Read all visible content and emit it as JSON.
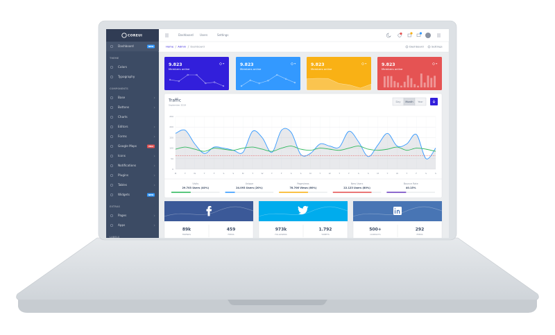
{
  "sidebar": {
    "brand": "COREUI",
    "groups": [
      {
        "items": [
          {
            "label": "Dashboard",
            "badge": {
              "text": "NEW",
              "color": "#39f"
            }
          }
        ]
      },
      {
        "title": "THEME",
        "items": [
          {
            "label": "Colors"
          },
          {
            "label": "Typography"
          }
        ]
      },
      {
        "title": "COMPONENTS",
        "items": [
          {
            "label": "Base",
            "submenu": true
          },
          {
            "label": "Buttons",
            "submenu": true
          },
          {
            "label": "Charts"
          },
          {
            "label": "Editors",
            "submenu": true
          },
          {
            "label": "Forms",
            "submenu": true
          },
          {
            "label": "Google Maps",
            "badge": {
              "text": "PRO",
              "color": "#e55353"
            }
          },
          {
            "label": "Icons",
            "submenu": true
          },
          {
            "label": "Notifications",
            "submenu": true
          },
          {
            "label": "Plugins",
            "submenu": true
          },
          {
            "label": "Tables",
            "submenu": true
          },
          {
            "label": "Widgets",
            "badge": {
              "text": "NEW",
              "color": "#39f"
            }
          }
        ]
      },
      {
        "title": "EXTRAS",
        "items": [
          {
            "label": "Pages",
            "submenu": true
          },
          {
            "label": "Apps",
            "submenu": true
          }
        ]
      },
      {
        "title": "LABELS",
        "items": []
      }
    ]
  },
  "header": {
    "nav": [
      "Dashboard",
      "Users",
      "Settings"
    ]
  },
  "breadcrumb": {
    "items": [
      "Home",
      "Admin",
      "Dashboard"
    ],
    "actions": [
      "Dashboard",
      "Settings"
    ]
  },
  "cards": [
    {
      "value": "9.823",
      "label": "Members online",
      "color": "#321fdb",
      "chart": "line",
      "values": [
        65,
        59,
        84,
        84,
        51,
        55,
        40
      ]
    },
    {
      "value": "9.823",
      "label": "Members online",
      "color": "#39f",
      "chart": "line",
      "values": [
        1,
        18,
        9,
        17,
        34,
        22,
        11
      ]
    },
    {
      "value": "9.823",
      "label": "Members online",
      "color": "#f9b115",
      "chart": "area",
      "values": [
        78,
        81,
        80,
        45,
        34,
        12,
        40
      ]
    },
    {
      "value": "9.823",
      "label": "Members online",
      "color": "#e55353",
      "chart": "bar",
      "values": [
        78,
        81,
        80,
        45,
        34,
        12,
        40,
        85,
        65,
        23,
        12,
        98,
        34,
        84,
        67,
        82
      ]
    }
  ],
  "traffic": {
    "title": "Traffic",
    "subtitle": "September 2019",
    "buttons": [
      "Day",
      "Month",
      "Year"
    ],
    "active": 1,
    "ylim": [
      0,
      250
    ],
    "yticks": [
      0,
      50,
      100,
      150,
      200,
      250
    ],
    "categories": [
      "M",
      "T",
      "W",
      "T",
      "F",
      "S",
      "S",
      "M",
      "T",
      "W",
      "T",
      "F",
      "S",
      "S",
      "M",
      "T",
      "W",
      "T",
      "F",
      "S",
      "S",
      "M",
      "T",
      "W",
      "T",
      "F",
      "S",
      "S"
    ],
    "series": [
      {
        "color": "#39f",
        "fill": true,
        "values": [
          170,
          185,
          120,
          75,
          105,
          100,
          90,
          80,
          180,
          150,
          80,
          185,
          175,
          70,
          75,
          120,
          110,
          105,
          180,
          130,
          60,
          115,
          170,
          110,
          120,
          165,
          50,
          100
        ]
      },
      {
        "color": "#2eb85c",
        "values": [
          95,
          105,
          95,
          85,
          100,
          95,
          90,
          100,
          105,
          95,
          85,
          100,
          110,
          95,
          90,
          100,
          95,
          90,
          100,
          110,
          95,
          90,
          95,
          105,
          90,
          100,
          95,
          85
        ]
      }
    ],
    "threshold": {
      "value": 65,
      "color": "#e55353"
    },
    "stats": [
      {
        "label": "Visits",
        "value": "29.703 Users (40%)",
        "progress": 40,
        "color": "#2eb85c"
      },
      {
        "label": "Unique",
        "value": "24.093 Users (20%)",
        "progress": 20,
        "color": "#39f"
      },
      {
        "label": "Pageviews",
        "value": "78.706 Views (60%)",
        "progress": 60,
        "color": "#f9b115"
      },
      {
        "label": "New Users",
        "value": "22.123 Users (80%)",
        "progress": 80,
        "color": "#e55353"
      },
      {
        "label": "Bounce Rate",
        "value": "40.15%",
        "progress": 40.15,
        "color": "#6f42c1"
      }
    ]
  },
  "social": [
    {
      "network": "facebook",
      "color": "#3b5998",
      "stats": [
        {
          "value": "89k",
          "label": "FRIENDS"
        },
        {
          "value": "459",
          "label": "FEEDS"
        }
      ]
    },
    {
      "network": "twitter",
      "color": "#00aced",
      "stats": [
        {
          "value": "973k",
          "label": "FOLLOWERS"
        },
        {
          "value": "1.792",
          "label": "TWEETS"
        }
      ]
    },
    {
      "network": "linkedin",
      "color": "#4875b4",
      "stats": [
        {
          "value": "500+",
          "label": "CONTACTS"
        },
        {
          "value": "292",
          "label": "FEEDS"
        }
      ]
    }
  ]
}
